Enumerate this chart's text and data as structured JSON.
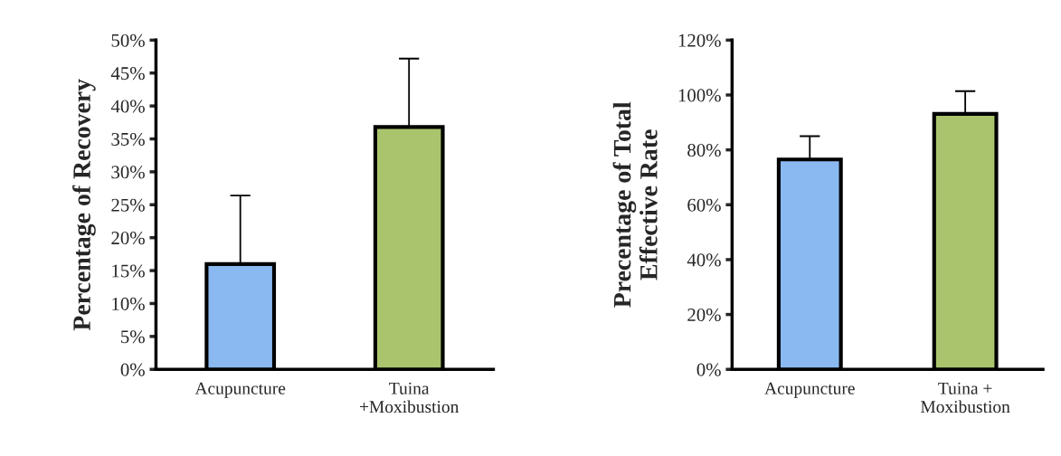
{
  "chart_data": [
    {
      "type": "bar",
      "categories": [
        "Acupuncture",
        "Tuina\n+Moxibustion"
      ],
      "values": [
        16.0,
        36.8
      ],
      "errors": [
        10.4,
        10.4
      ],
      "colors": [
        "#8ab8f0",
        "#a9c46c"
      ],
      "ylabel": "Percentage of Recovery",
      "ylim": [
        0,
        50
      ],
      "yticks": [
        {
          "value": 0,
          "label": "0%"
        },
        {
          "value": 5,
          "label": "5%"
        },
        {
          "value": 10,
          "label": "10%"
        },
        {
          "value": 15,
          "label": "15%"
        },
        {
          "value": 20,
          "label": "20%"
        },
        {
          "value": 25,
          "label": "25%"
        },
        {
          "value": 30,
          "label": "30%"
        },
        {
          "value": 35,
          "label": "35%"
        },
        {
          "value": 40,
          "label": "40%"
        },
        {
          "value": 45,
          "label": "45%"
        },
        {
          "value": 50,
          "label": "50%"
        }
      ],
      "grid": false,
      "legend": false
    },
    {
      "type": "bar",
      "categories": [
        "Acupuncture",
        "Tuina +\nMoxibustion"
      ],
      "values": [
        76.5,
        93.1
      ],
      "errors": [
        8.5,
        8.3
      ],
      "colors": [
        "#8ab8f0",
        "#a9c46c"
      ],
      "ylabel": "Precentage of Total\nEffective Rate",
      "ylim": [
        0,
        120
      ],
      "yticks": [
        {
          "value": 0,
          "label": "0%"
        },
        {
          "value": 20,
          "label": "20%"
        },
        {
          "value": 40,
          "label": "40%"
        },
        {
          "value": 60,
          "label": "60%"
        },
        {
          "value": 80,
          "label": "80%"
        },
        {
          "value": 100,
          "label": "100%"
        },
        {
          "value": 120,
          "label": "120%"
        }
      ],
      "grid": false,
      "legend": false
    }
  ]
}
